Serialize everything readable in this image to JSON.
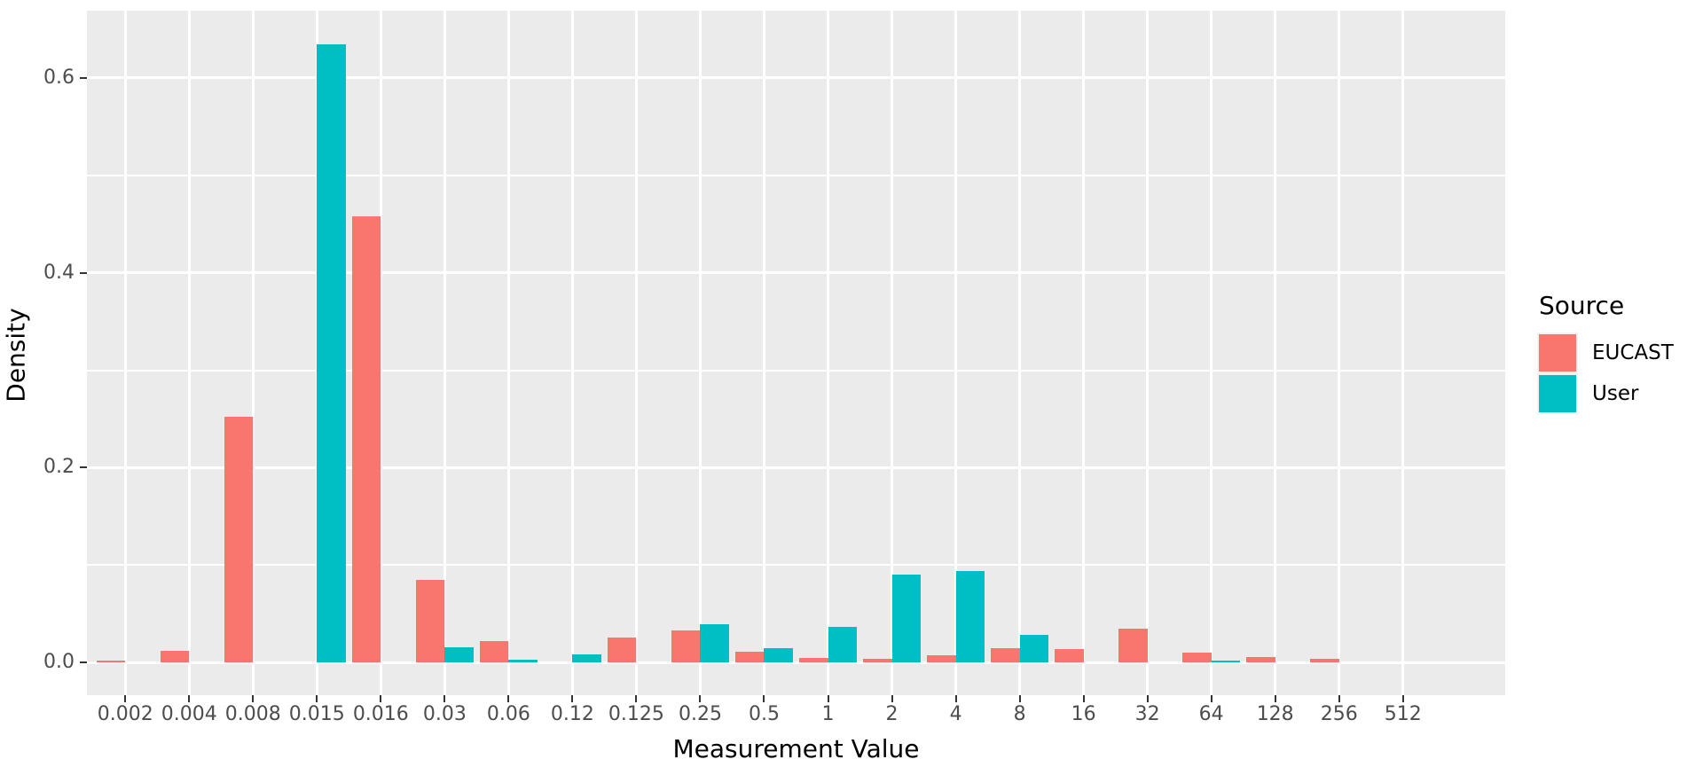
{
  "figure": {
    "background": "#FFFFFF",
    "panel_bg": "#EBEBEB",
    "grid_color": "#FFFFFF",
    "tick_label_color": "#4D4D4D",
    "axis_title_color": "#000000",
    "tick_mark_color": "#333333"
  },
  "chart_data": {
    "type": "bar",
    "orientation": "vertical",
    "grouping": "dodge",
    "title": "",
    "xlabel": "Measurement Value",
    "ylabel": "Density",
    "categories": [
      "0.002",
      "0.004",
      "0.008",
      "0.015",
      "0.016",
      "0.03",
      "0.06",
      "0.12",
      "0.125",
      "0.25",
      "0.5",
      "1",
      "2",
      "4",
      "8",
      "16",
      "32",
      "64",
      "128",
      "256",
      "512"
    ],
    "series": [
      {
        "name": "EUCAST",
        "color": "#F8766D",
        "values": [
          0.002,
          0.012,
          0.252,
          0,
          0.458,
          0.085,
          0.022,
          0,
          0.026,
          0.033,
          0.011,
          0.005,
          0.004,
          0.007,
          0.015,
          0.014,
          0.035,
          0.01,
          0.006,
          0.004,
          0
        ]
      },
      {
        "name": "User",
        "color": "#00BFC4",
        "values": [
          0,
          0,
          0,
          0.634,
          0,
          0.016,
          0.003,
          0.008,
          0,
          0.039,
          0.015,
          0.037,
          0.09,
          0.094,
          0.028,
          0,
          0,
          0.002,
          0,
          0,
          0
        ]
      }
    ],
    "y_ticks": {
      "labels": [
        "0.0",
        "0.2",
        "0.4",
        "0.6"
      ],
      "values": [
        0,
        0.2,
        0.4,
        0.6
      ]
    },
    "y_minor": [
      0.1,
      0.3,
      0.5
    ],
    "ylim": [
      -0.0335,
      0.669
    ],
    "grid": true,
    "legend": {
      "title": "Source",
      "position": "right"
    }
  }
}
